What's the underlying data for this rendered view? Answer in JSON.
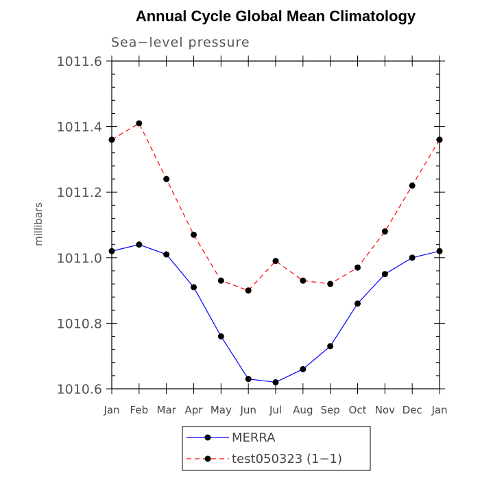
{
  "chart_data": {
    "type": "line",
    "title": "Annual Cycle Global Mean Climatology",
    "subtitle": "Sea−level pressure",
    "xlabel": "",
    "ylabel": "millibars",
    "categories": [
      "Jan",
      "Feb",
      "Mar",
      "Apr",
      "May",
      "Jun",
      "Jul",
      "Aug",
      "Sep",
      "Oct",
      "Nov",
      "Dec",
      "Jan"
    ],
    "ylim": [
      1010.6,
      1011.6
    ],
    "yticks": [
      1010.6,
      1010.8,
      1011.0,
      1011.2,
      1011.4,
      1011.6
    ],
    "ytick_labels": [
      "1010.6",
      "1010.8",
      "1011.0",
      "1011.2",
      "1011.4",
      "1011.6"
    ],
    "series": [
      {
        "name": "MERRA",
        "color": "#0000ff",
        "dash": "solid",
        "values": [
          1011.02,
          1011.04,
          1011.01,
          1010.91,
          1010.76,
          1010.63,
          1010.62,
          1010.66,
          1010.73,
          1010.86,
          1010.95,
          1011.0,
          1011.02
        ]
      },
      {
        "name": "test050323 (1−1)",
        "color": "#ff0000",
        "dash": "dashed",
        "values": [
          1011.36,
          1011.41,
          1011.24,
          1011.07,
          1010.93,
          1010.9,
          1010.99,
          1010.93,
          1010.92,
          1010.97,
          1011.08,
          1011.22,
          1011.36
        ]
      }
    ],
    "legend_position": "bottom-center",
    "grid": false
  }
}
